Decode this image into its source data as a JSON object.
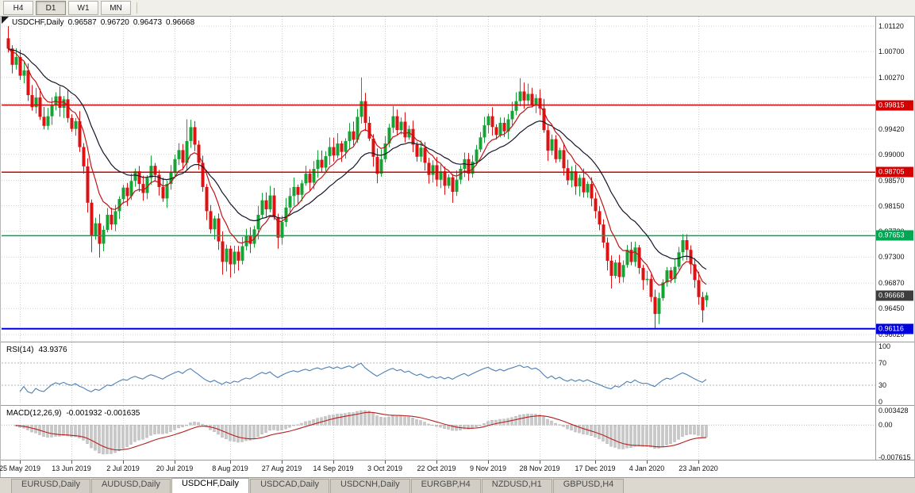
{
  "toolbar": {
    "timeframes": [
      {
        "label": "H4",
        "active": false
      },
      {
        "label": "D1",
        "active": true
      },
      {
        "label": "W1",
        "active": false
      },
      {
        "label": "MN",
        "active": false
      }
    ]
  },
  "chart_header": {
    "symbol_period": "USDCHF,Daily",
    "open": "0.96587",
    "high": "0.96720",
    "low": "0.96473",
    "close": "0.96668"
  },
  "rsi_panel": {
    "name": "RSI(14)",
    "value": "43.9376",
    "axis_labels": [
      "100",
      "70",
      "30",
      "0"
    ],
    "levels": [
      70,
      30
    ]
  },
  "macd_panel": {
    "name": "MACD(12,26,9)",
    "value": "-0.001932 -0.001635",
    "axis_labels": [
      "0.003428",
      "0.00",
      "-0.007615"
    ],
    "range": [
      -0.007615,
      0.003428
    ]
  },
  "tabs": [
    {
      "label": "EURUSD,Daily",
      "active": false
    },
    {
      "label": "AUDUSD,Daily",
      "active": false
    },
    {
      "label": "USDCHF,Daily",
      "active": true
    },
    {
      "label": "USDCAD,Daily",
      "active": false
    },
    {
      "label": "USDCNH,Daily",
      "active": false
    },
    {
      "label": "EURGBP,H4",
      "active": false
    },
    {
      "label": "NZDUSD,H1",
      "active": false
    },
    {
      "label": "GBPUSD,H4",
      "active": false
    }
  ],
  "colors": {
    "up": "#16a335",
    "down": "#de1212",
    "ma_fast": "#c01414",
    "ma_slow": "#14142a",
    "rsi": "#4a7fb5",
    "macd_hist": "#c8c8c8",
    "macd_hist_edge": "#a8a8a8",
    "macd_signal": "#b82020",
    "grid": "#d2d2d2"
  },
  "chart_data": {
    "type": "candlestick",
    "symbol": "USDCHF",
    "timeframe": "Daily",
    "title": "USDCHF,Daily 0.96587 0.96720 0.96473 0.96668",
    "ylim": [
      0.9602,
      1.0112
    ],
    "y_axis_labels": [
      "1.01120",
      "1.00700",
      "1.00270",
      "0.99420",
      "0.99000",
      "0.98570",
      "0.98150",
      "0.97730",
      "0.97300",
      "0.96870",
      "0.96450",
      "0.96020"
    ],
    "grid_extra": [
      0.99845
    ],
    "x_ticks": [
      {
        "i": 3,
        "label": "25 May 2019"
      },
      {
        "i": 16,
        "label": "13 Jun 2019"
      },
      {
        "i": 29,
        "label": "2 Jul 2019"
      },
      {
        "i": 42,
        "label": "20 Jul 2019"
      },
      {
        "i": 56,
        "label": "8 Aug 2019"
      },
      {
        "i": 69,
        "label": "27 Aug 2019"
      },
      {
        "i": 82,
        "label": "14 Sep 2019"
      },
      {
        "i": 95,
        "label": "3 Oct 2019"
      },
      {
        "i": 108,
        "label": "22 Oct 2019"
      },
      {
        "i": 121,
        "label": "9 Nov 2019"
      },
      {
        "i": 134,
        "label": "28 Nov 2019"
      },
      {
        "i": 148,
        "label": "17 Dec 2019"
      },
      {
        "i": 161,
        "label": "4 Jan 2020"
      },
      {
        "i": 174,
        "label": "23 Jan 2020"
      }
    ],
    "first_open": 1.0092,
    "closes": [
      1.0075,
      1.0048,
      1.0061,
      1.003,
      1.0039,
      0.9998,
      0.9978,
      0.9994,
      0.9962,
      0.9947,
      0.9963,
      0.9982,
      0.9996,
      0.9977,
      0.9991,
      0.996,
      0.9942,
      0.9955,
      0.9912,
      0.988,
      0.982,
      0.9765,
      0.9786,
      0.9752,
      0.9775,
      0.98,
      0.9784,
      0.9806,
      0.9826,
      0.9845,
      0.9831,
      0.9856,
      0.9872,
      0.9851,
      0.9836,
      0.9861,
      0.9881,
      0.9866,
      0.9846,
      0.9827,
      0.9851,
      0.9871,
      0.9892,
      0.9907,
      0.9886,
      0.9922,
      0.9945,
      0.9916,
      0.9886,
      0.9846,
      0.9806,
      0.9776,
      0.9794,
      0.9756,
      0.9722,
      0.9744,
      0.9718,
      0.9739,
      0.9724,
      0.9748,
      0.9766,
      0.9752,
      0.9776,
      0.98,
      0.9824,
      0.9809,
      0.9832,
      0.9796,
      0.9762,
      0.9788,
      0.9812,
      0.9831,
      0.9846,
      0.9833,
      0.9852,
      0.9868,
      0.9853,
      0.9876,
      0.9891,
      0.9878,
      0.9897,
      0.9912,
      0.9898,
      0.9918,
      0.9904,
      0.9922,
      0.9938,
      0.9924,
      0.9962,
      0.9988,
      0.9952,
      0.9926,
      0.9896,
      0.9868,
      0.9892,
      0.9918,
      0.9944,
      0.9963,
      0.994,
      0.9954,
      0.9928,
      0.9942,
      0.9916,
      0.9896,
      0.9911,
      0.9886,
      0.9866,
      0.9882,
      0.9858,
      0.9872,
      0.9848,
      0.9862,
      0.9838,
      0.9858,
      0.9876,
      0.9892,
      0.9868,
      0.9888,
      0.9908,
      0.9928,
      0.9948,
      0.9963,
      0.9945,
      0.9932,
      0.9952,
      0.9938,
      0.9958,
      0.9972,
      0.9988,
      1.0004,
      0.9989,
      1.0,
      0.9982,
      0.9993,
      0.9976,
      0.994,
      0.9906,
      0.9925,
      0.9892,
      0.9907,
      0.9877,
      0.9857,
      0.9872,
      0.9847,
      0.9861,
      0.9837,
      0.9851,
      0.9827,
      0.9806,
      0.9784,
      0.9754,
      0.9724,
      0.9699,
      0.9721,
      0.9697,
      0.9717,
      0.9742,
      0.9722,
      0.9746,
      0.9712,
      0.9692,
      0.9694,
      0.9664,
      0.9636,
      0.9662,
      0.9688,
      0.9708,
      0.9694,
      0.9714,
      0.9738,
      0.9758,
      0.9742,
      0.9718,
      0.9692,
      0.9664,
      0.9642,
      0.96668
    ],
    "wick_overrides": {
      "0": {
        "h": 1.0112
      },
      "21": {
        "l": 0.9738
      },
      "23": {
        "l": 0.9729
      },
      "45": {
        "h": 0.9958
      },
      "54": {
        "l": 0.9701
      },
      "56": {
        "l": 0.9696
      },
      "68": {
        "l": 0.9744
      },
      "89": {
        "h": 1.0027
      },
      "93": {
        "l": 0.9852
      },
      "97": {
        "h": 0.998
      },
      "112": {
        "l": 0.982
      },
      "129": {
        "h": 1.0026
      },
      "152": {
        "l": 0.9678
      },
      "163": {
        "l": 0.9612
      },
      "170": {
        "h": 0.9768
      },
      "175": {
        "l": 0.9622
      },
      "176": {
        "o": 0.96587,
        "h": 0.9672,
        "l": 0.96473
      }
    },
    "hlines": [
      {
        "price": 0.99815,
        "label": "0.99815",
        "color": "#d20000",
        "width": 1.5
      },
      {
        "price": 0.98705,
        "label": "0.98705",
        "color": "#d20000",
        "width": 1.5
      },
      {
        "price": 0.97653,
        "label": "0.97653",
        "color": "#00a651",
        "width": 1.5
      },
      {
        "price": 0.96116,
        "label": "0.96116",
        "color": "#0000dd",
        "width": 2
      }
    ],
    "price_marker": {
      "price": 0.96668,
      "label": "0.96668",
      "color": "#3d3d3d"
    },
    "indicators": {
      "ma_fast_period": 8,
      "ma_slow_period": 21,
      "rsi_period": 14,
      "macd": [
        12,
        26,
        9
      ]
    }
  }
}
